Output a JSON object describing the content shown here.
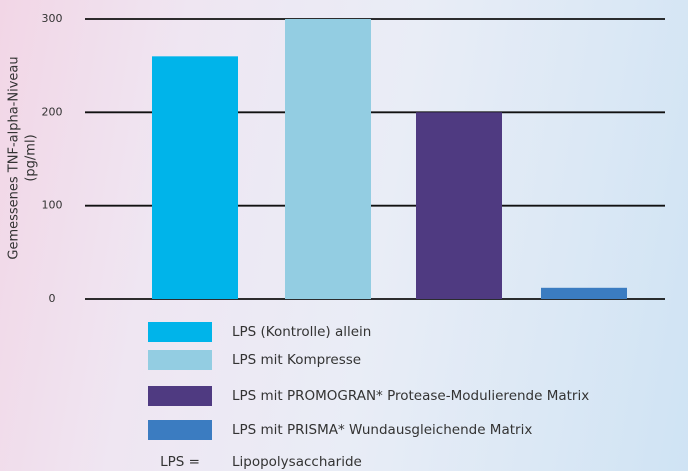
{
  "chart_data": {
    "type": "bar",
    "y_label": [
      "Gemessenes TNF-alpha-Niveau",
      "(pg/ml)"
    ],
    "categories": [
      "LPS (Kontrolle) allein",
      "LPS mit Kompresse",
      "LPS mit PROMOGRAN* Protease-Modulierende Matrix",
      "LPS mit PRISMA* Wundausgleichende Matrix"
    ],
    "values": [
      260,
      300,
      200,
      12
    ],
    "colors": [
      "#00b4ea",
      "#93cde2",
      "#4f3a81",
      "#3b7cc1"
    ],
    "ylim": [
      0,
      300
    ],
    "yticks": [
      0,
      100,
      200,
      300
    ],
    "grid": true,
    "footnote": {
      "term": "LPS =",
      "definition": "Lipopolysaccharide"
    }
  }
}
